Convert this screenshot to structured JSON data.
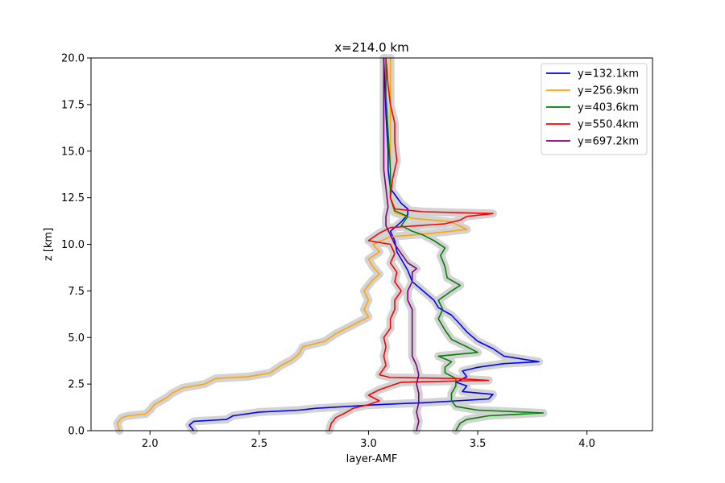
{
  "chart_data": {
    "type": "line",
    "title": "x=214.0 km",
    "xlabel": "layer-AMF",
    "ylabel": "z [km]",
    "xlim": [
      1.73,
      4.3
    ],
    "ylim": [
      0,
      20
    ],
    "xticks": [
      "2.0",
      "2.5",
      "3.0",
      "3.5",
      "4.0"
    ],
    "yticks": [
      "0.0",
      "2.5",
      "5.0",
      "7.5",
      "10.0",
      "12.5",
      "15.0",
      "17.5",
      "20.0"
    ],
    "grid": false,
    "legend_position": "top-right",
    "uncertainty_color": "#d3d3d3",
    "series": [
      {
        "name": "y=132.1km",
        "color": "#0000ff",
        "points": [
          [
            2.2,
            0
          ],
          [
            2.18,
            0.3
          ],
          [
            2.2,
            0.5
          ],
          [
            2.35,
            0.6
          ],
          [
            2.38,
            0.8
          ],
          [
            2.5,
            1.0
          ],
          [
            2.68,
            1.1
          ],
          [
            2.76,
            1.2
          ],
          [
            3.05,
            1.4
          ],
          [
            3.25,
            1.5
          ],
          [
            3.4,
            1.6
          ],
          [
            3.55,
            1.7
          ],
          [
            3.57,
            1.95
          ],
          [
            3.43,
            2.1
          ],
          [
            3.45,
            2.4
          ],
          [
            3.4,
            2.6
          ],
          [
            3.45,
            2.9
          ],
          [
            3.43,
            3.2
          ],
          [
            3.5,
            3.4
          ],
          [
            3.62,
            3.6
          ],
          [
            3.78,
            3.7
          ],
          [
            3.62,
            4.0
          ],
          [
            3.57,
            4.4
          ],
          [
            3.5,
            4.8
          ],
          [
            3.45,
            5.3
          ],
          [
            3.42,
            5.7
          ],
          [
            3.38,
            6.2
          ],
          [
            3.32,
            6.6
          ],
          [
            3.3,
            7.0
          ],
          [
            3.25,
            7.5
          ],
          [
            3.2,
            8.0
          ],
          [
            3.18,
            8.6
          ],
          [
            3.15,
            9.2
          ],
          [
            3.13,
            9.6
          ],
          [
            3.12,
            10.2
          ],
          [
            3.1,
            10.7
          ],
          [
            3.15,
            11.2
          ],
          [
            3.18,
            11.6
          ],
          [
            3.18,
            11.9
          ],
          [
            3.15,
            12.2
          ],
          [
            3.1,
            13.0
          ],
          [
            3.09,
            14.0
          ],
          [
            3.09,
            15.0
          ],
          [
            3.08,
            17.0
          ],
          [
            3.07,
            20.0
          ]
        ]
      },
      {
        "name": "y=256.9km",
        "color": "#ffa500",
        "points": [
          [
            1.86,
            0
          ],
          [
            1.85,
            0.4
          ],
          [
            1.87,
            0.7
          ],
          [
            1.9,
            0.8
          ],
          [
            1.98,
            0.9
          ],
          [
            2.0,
            1.1
          ],
          [
            2.02,
            1.4
          ],
          [
            2.05,
            1.6
          ],
          [
            2.08,
            1.8
          ],
          [
            2.1,
            2.0
          ],
          [
            2.15,
            2.3
          ],
          [
            2.25,
            2.5
          ],
          [
            2.3,
            2.8
          ],
          [
            2.45,
            2.9
          ],
          [
            2.55,
            3.1
          ],
          [
            2.6,
            3.5
          ],
          [
            2.65,
            3.8
          ],
          [
            2.68,
            4.1
          ],
          [
            2.7,
            4.5
          ],
          [
            2.8,
            4.8
          ],
          [
            2.85,
            5.2
          ],
          [
            2.9,
            5.5
          ],
          [
            2.95,
            5.8
          ],
          [
            3.0,
            6.1
          ],
          [
            2.98,
            6.5
          ],
          [
            3.0,
            7.0
          ],
          [
            2.98,
            7.5
          ],
          [
            3.0,
            7.8
          ],
          [
            3.02,
            8.1
          ],
          [
            3.05,
            8.4
          ],
          [
            3.02,
            8.8
          ],
          [
            3.0,
            9.2
          ],
          [
            3.05,
            9.6
          ],
          [
            3.02,
            10.0
          ],
          [
            3.1,
            10.4
          ],
          [
            3.3,
            10.6
          ],
          [
            3.45,
            10.8
          ],
          [
            3.38,
            11.2
          ],
          [
            3.2,
            11.4
          ],
          [
            3.12,
            11.7
          ],
          [
            3.1,
            12.5
          ],
          [
            3.1,
            14.0
          ],
          [
            3.1,
            16.0
          ],
          [
            3.1,
            18.0
          ],
          [
            3.1,
            20.0
          ]
        ]
      },
      {
        "name": "y=403.6km",
        "color": "#008000",
        "points": [
          [
            3.4,
            0
          ],
          [
            3.42,
            0.4
          ],
          [
            3.45,
            0.6
          ],
          [
            3.55,
            0.8
          ],
          [
            3.8,
            0.95
          ],
          [
            3.5,
            1.1
          ],
          [
            3.4,
            1.3
          ],
          [
            3.38,
            1.6
          ],
          [
            3.38,
            2.0
          ],
          [
            3.4,
            2.4
          ],
          [
            3.4,
            2.8
          ],
          [
            3.35,
            3.1
          ],
          [
            3.35,
            3.4
          ],
          [
            3.38,
            3.7
          ],
          [
            3.32,
            4.0
          ],
          [
            3.5,
            4.2
          ],
          [
            3.45,
            4.5
          ],
          [
            3.38,
            4.9
          ],
          [
            3.35,
            5.4
          ],
          [
            3.32,
            6.0
          ],
          [
            3.34,
            6.5
          ],
          [
            3.32,
            7.0
          ],
          [
            3.38,
            7.5
          ],
          [
            3.42,
            7.8
          ],
          [
            3.36,
            8.2
          ],
          [
            3.35,
            8.8
          ],
          [
            3.33,
            9.4
          ],
          [
            3.35,
            9.8
          ],
          [
            3.3,
            10.2
          ],
          [
            3.25,
            10.5
          ],
          [
            3.2,
            10.7
          ],
          [
            3.15,
            11.0
          ],
          [
            3.18,
            11.5
          ],
          [
            3.12,
            11.8
          ],
          [
            3.1,
            12.5
          ],
          [
            3.1,
            14.0
          ],
          [
            3.09,
            16.0
          ],
          [
            3.08,
            18.0
          ],
          [
            3.08,
            20.0
          ]
        ]
      },
      {
        "name": "y=550.4km",
        "color": "#ff0000",
        "points": [
          [
            2.82,
            0
          ],
          [
            2.83,
            0.4
          ],
          [
            2.85,
            0.7
          ],
          [
            2.9,
            1.0
          ],
          [
            2.93,
            1.2
          ],
          [
            3.0,
            1.4
          ],
          [
            3.05,
            1.6
          ],
          [
            3.0,
            1.9
          ],
          [
            3.05,
            2.2
          ],
          [
            3.1,
            2.4
          ],
          [
            3.15,
            2.6
          ],
          [
            3.55,
            2.7
          ],
          [
            3.4,
            2.8
          ],
          [
            3.1,
            2.85
          ],
          [
            3.05,
            3.0
          ],
          [
            3.08,
            3.5
          ],
          [
            3.07,
            4.0
          ],
          [
            3.08,
            4.5
          ],
          [
            3.07,
            5.0
          ],
          [
            3.1,
            5.5
          ],
          [
            3.1,
            6.0
          ],
          [
            3.12,
            6.5
          ],
          [
            3.12,
            7.0
          ],
          [
            3.15,
            7.5
          ],
          [
            3.12,
            8.0
          ],
          [
            3.13,
            8.5
          ],
          [
            3.1,
            9.0
          ],
          [
            3.12,
            9.5
          ],
          [
            3.1,
            10.0
          ],
          [
            3.0,
            10.2
          ],
          [
            3.05,
            10.6
          ],
          [
            3.1,
            10.9
          ],
          [
            3.35,
            11.1
          ],
          [
            3.42,
            11.3
          ],
          [
            3.45,
            11.5
          ],
          [
            3.57,
            11.65
          ],
          [
            3.25,
            11.75
          ],
          [
            3.12,
            11.9
          ],
          [
            3.1,
            12.5
          ],
          [
            3.11,
            13.5
          ],
          [
            3.13,
            14.5
          ],
          [
            3.12,
            15.5
          ],
          [
            3.12,
            16.5
          ],
          [
            3.1,
            17.5
          ],
          [
            3.09,
            18.5
          ],
          [
            3.08,
            20.0
          ]
        ]
      },
      {
        "name": "y=697.2km",
        "color": "#800080",
        "points": [
          [
            3.22,
            0
          ],
          [
            3.23,
            0.5
          ],
          [
            3.22,
            1.0
          ],
          [
            3.23,
            1.5
          ],
          [
            3.23,
            2.0
          ],
          [
            3.22,
            2.5
          ],
          [
            3.23,
            3.0
          ],
          [
            3.22,
            3.5
          ],
          [
            3.2,
            4.0
          ],
          [
            3.2,
            4.5
          ],
          [
            3.2,
            5.0
          ],
          [
            3.2,
            5.5
          ],
          [
            3.2,
            6.0
          ],
          [
            3.2,
            6.5
          ],
          [
            3.18,
            7.0
          ],
          [
            3.18,
            7.5
          ],
          [
            3.2,
            8.0
          ],
          [
            3.2,
            8.5
          ],
          [
            3.22,
            8.7
          ],
          [
            3.18,
            9.0
          ],
          [
            3.15,
            9.5
          ],
          [
            3.12,
            10.0
          ],
          [
            3.1,
            10.5
          ],
          [
            3.08,
            11.0
          ],
          [
            3.08,
            11.5
          ],
          [
            3.09,
            12.0
          ],
          [
            3.08,
            13.0
          ],
          [
            3.07,
            14.0
          ],
          [
            3.07,
            15.0
          ],
          [
            3.07,
            16.0
          ],
          [
            3.07,
            17.0
          ],
          [
            3.07,
            18.0
          ],
          [
            3.07,
            20.0
          ]
        ]
      }
    ]
  }
}
